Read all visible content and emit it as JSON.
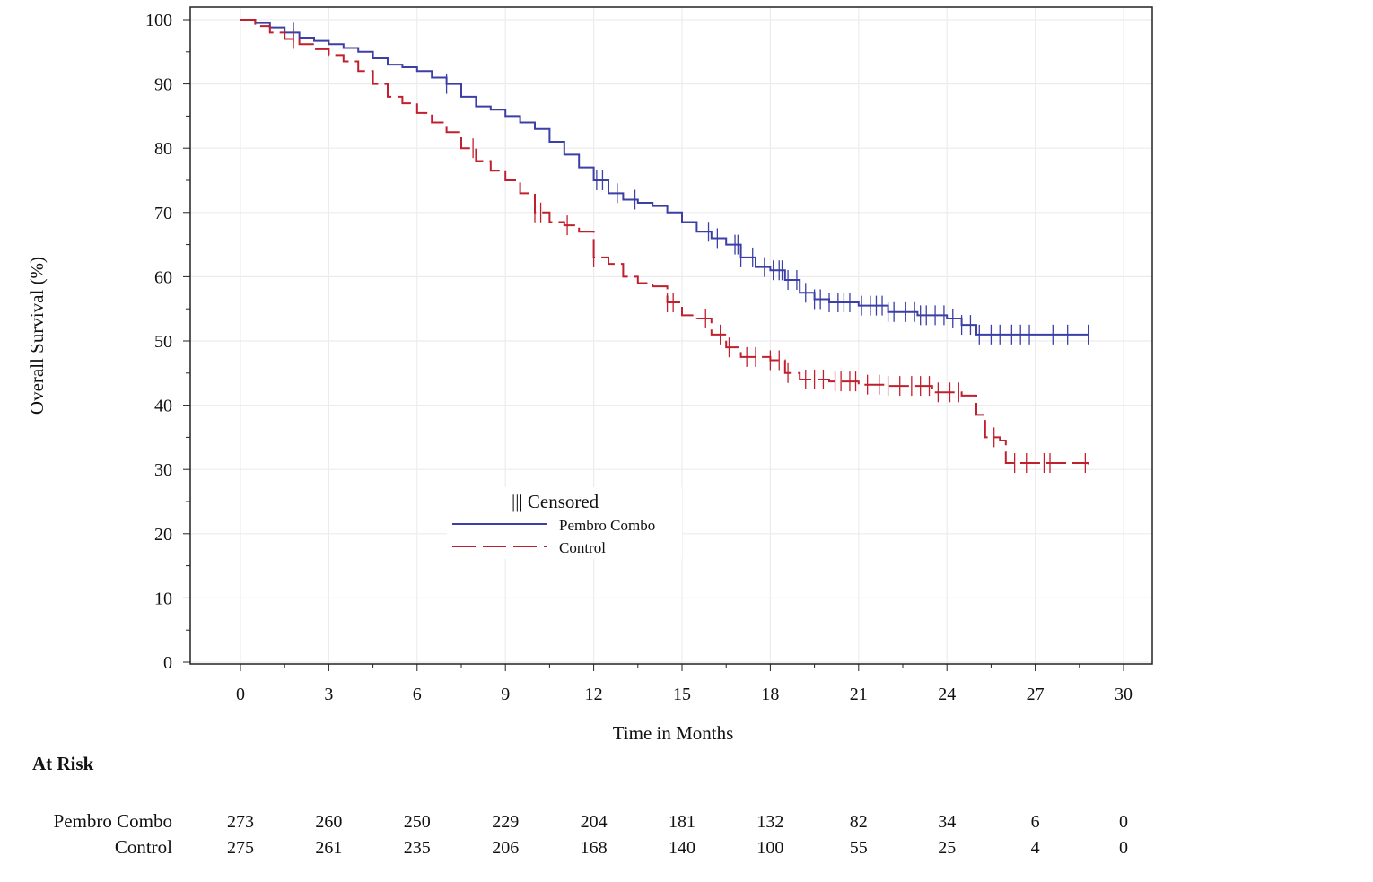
{
  "chart_data": {
    "type": "line",
    "subtype": "kaplan-meier step",
    "xlabel": "Time in Months",
    "ylabel": "Overall Survival (%)",
    "xlim": [
      0,
      30
    ],
    "ylim": [
      0,
      100
    ],
    "xticks": [
      0,
      3,
      6,
      9,
      12,
      15,
      18,
      21,
      24,
      27,
      30
    ],
    "yticks": [
      0,
      10,
      20,
      30,
      40,
      50,
      60,
      70,
      80,
      90,
      100
    ],
    "grid": true,
    "legend": {
      "placement": "center-left",
      "censored_label": "||| Censored"
    },
    "series": [
      {
        "name": "Pembro Combo",
        "color": "#3b3fa6",
        "dash": "solid",
        "points": [
          [
            0,
            100
          ],
          [
            0.5,
            99.5
          ],
          [
            1,
            98.8
          ],
          [
            1.5,
            98
          ],
          [
            2,
            97.2
          ],
          [
            2.5,
            96.7
          ],
          [
            3,
            96.2
          ],
          [
            3.5,
            95.6
          ],
          [
            4,
            95
          ],
          [
            4.5,
            94
          ],
          [
            5,
            93
          ],
          [
            5.5,
            92.6
          ],
          [
            6,
            92
          ],
          [
            6.5,
            91
          ],
          [
            7,
            90
          ],
          [
            7.5,
            88
          ],
          [
            8,
            86.5
          ],
          [
            8.5,
            86
          ],
          [
            9,
            85
          ],
          [
            9.5,
            84
          ],
          [
            10,
            83
          ],
          [
            10.5,
            81
          ],
          [
            11,
            79
          ],
          [
            11.5,
            77
          ],
          [
            12,
            75
          ],
          [
            12.5,
            73
          ],
          [
            13,
            72
          ],
          [
            13.5,
            71.5
          ],
          [
            14,
            71
          ],
          [
            14.5,
            70
          ],
          [
            15,
            68.5
          ],
          [
            15.5,
            67
          ],
          [
            16,
            66
          ],
          [
            16.5,
            65
          ],
          [
            17,
            63
          ],
          [
            17.5,
            61.5
          ],
          [
            18,
            61
          ],
          [
            18.5,
            59.5
          ],
          [
            19,
            57.5
          ],
          [
            19.5,
            56.5
          ],
          [
            20,
            56
          ],
          [
            21,
            55.5
          ],
          [
            22,
            54.5
          ],
          [
            23,
            54
          ],
          [
            24,
            53.5
          ],
          [
            24.5,
            52.5
          ],
          [
            25,
            51
          ],
          [
            28.8,
            51
          ]
        ],
        "censored": [
          1.8,
          7,
          12.1,
          12.3,
          12.8,
          13.4,
          15.9,
          16.2,
          16.8,
          16.9,
          17,
          17.4,
          17.8,
          18.1,
          18.3,
          18.4,
          18.6,
          18.9,
          19.2,
          19.5,
          19.7,
          20,
          20.3,
          20.5,
          20.7,
          21.1,
          21.4,
          21.6,
          21.8,
          22,
          22.2,
          22.6,
          22.9,
          23.1,
          23.3,
          23.6,
          23.9,
          24.2,
          24.5,
          24.8,
          25.1,
          25.5,
          25.8,
          26.2,
          26.5,
          26.8,
          27.6,
          28.1,
          28.8
        ]
      },
      {
        "name": "Control",
        "color": "#c0202e",
        "dash": "dashed",
        "points": [
          [
            0,
            100
          ],
          [
            0.5,
            99
          ],
          [
            1,
            98
          ],
          [
            1.5,
            97
          ],
          [
            2,
            96.2
          ],
          [
            2.5,
            95.4
          ],
          [
            3,
            94.5
          ],
          [
            3.5,
            93.5
          ],
          [
            4,
            92
          ],
          [
            4.5,
            90
          ],
          [
            5,
            88
          ],
          [
            5.5,
            87
          ],
          [
            6,
            85.5
          ],
          [
            6.5,
            84
          ],
          [
            7,
            82.5
          ],
          [
            7.5,
            80
          ],
          [
            8,
            78
          ],
          [
            8.5,
            76.5
          ],
          [
            9,
            75
          ],
          [
            9.5,
            73
          ],
          [
            10,
            70
          ],
          [
            10.5,
            68.5
          ],
          [
            11,
            68
          ],
          [
            11.5,
            67
          ],
          [
            12,
            63
          ],
          [
            12.5,
            62
          ],
          [
            13,
            60
          ],
          [
            13.5,
            59
          ],
          [
            14,
            58.5
          ],
          [
            14.5,
            56
          ],
          [
            15,
            54
          ],
          [
            15.5,
            53.5
          ],
          [
            16,
            51
          ],
          [
            16.5,
            49
          ],
          [
            17,
            47.5
          ],
          [
            18,
            47
          ],
          [
            18.5,
            45
          ],
          [
            19,
            44
          ],
          [
            20,
            43.7
          ],
          [
            21,
            43.2
          ],
          [
            22,
            43
          ],
          [
            23,
            43
          ],
          [
            23.5,
            42
          ],
          [
            24.5,
            41.5
          ],
          [
            25,
            38.5
          ],
          [
            25.3,
            35
          ],
          [
            25.8,
            34.5
          ],
          [
            26,
            31
          ],
          [
            28.8,
            30.8
          ]
        ],
        "censored": [
          1.8,
          7.9,
          10,
          10.2,
          11.1,
          12,
          14.5,
          14.7,
          15.8,
          16.3,
          16.6,
          17.2,
          17.5,
          18,
          18.3,
          18.6,
          19.2,
          19.5,
          19.8,
          20.2,
          20.4,
          20.7,
          20.9,
          21.3,
          21.7,
          22,
          22.4,
          22.8,
          23.1,
          23.4,
          23.7,
          24.1,
          24.4,
          25.6,
          26.3,
          26.7,
          27.3,
          27.5,
          28.7
        ]
      }
    ],
    "at_risk": {
      "title": "At Risk",
      "times": [
        0,
        3,
        6,
        9,
        12,
        15,
        18,
        21,
        24,
        27,
        30
      ],
      "rows": [
        {
          "label": "Pembro Combo",
          "values": [
            273,
            260,
            250,
            229,
            204,
            181,
            132,
            82,
            34,
            6,
            0
          ]
        },
        {
          "label": "Control",
          "values": [
            275,
            261,
            235,
            206,
            168,
            140,
            100,
            55,
            25,
            4,
            0
          ]
        }
      ]
    }
  }
}
